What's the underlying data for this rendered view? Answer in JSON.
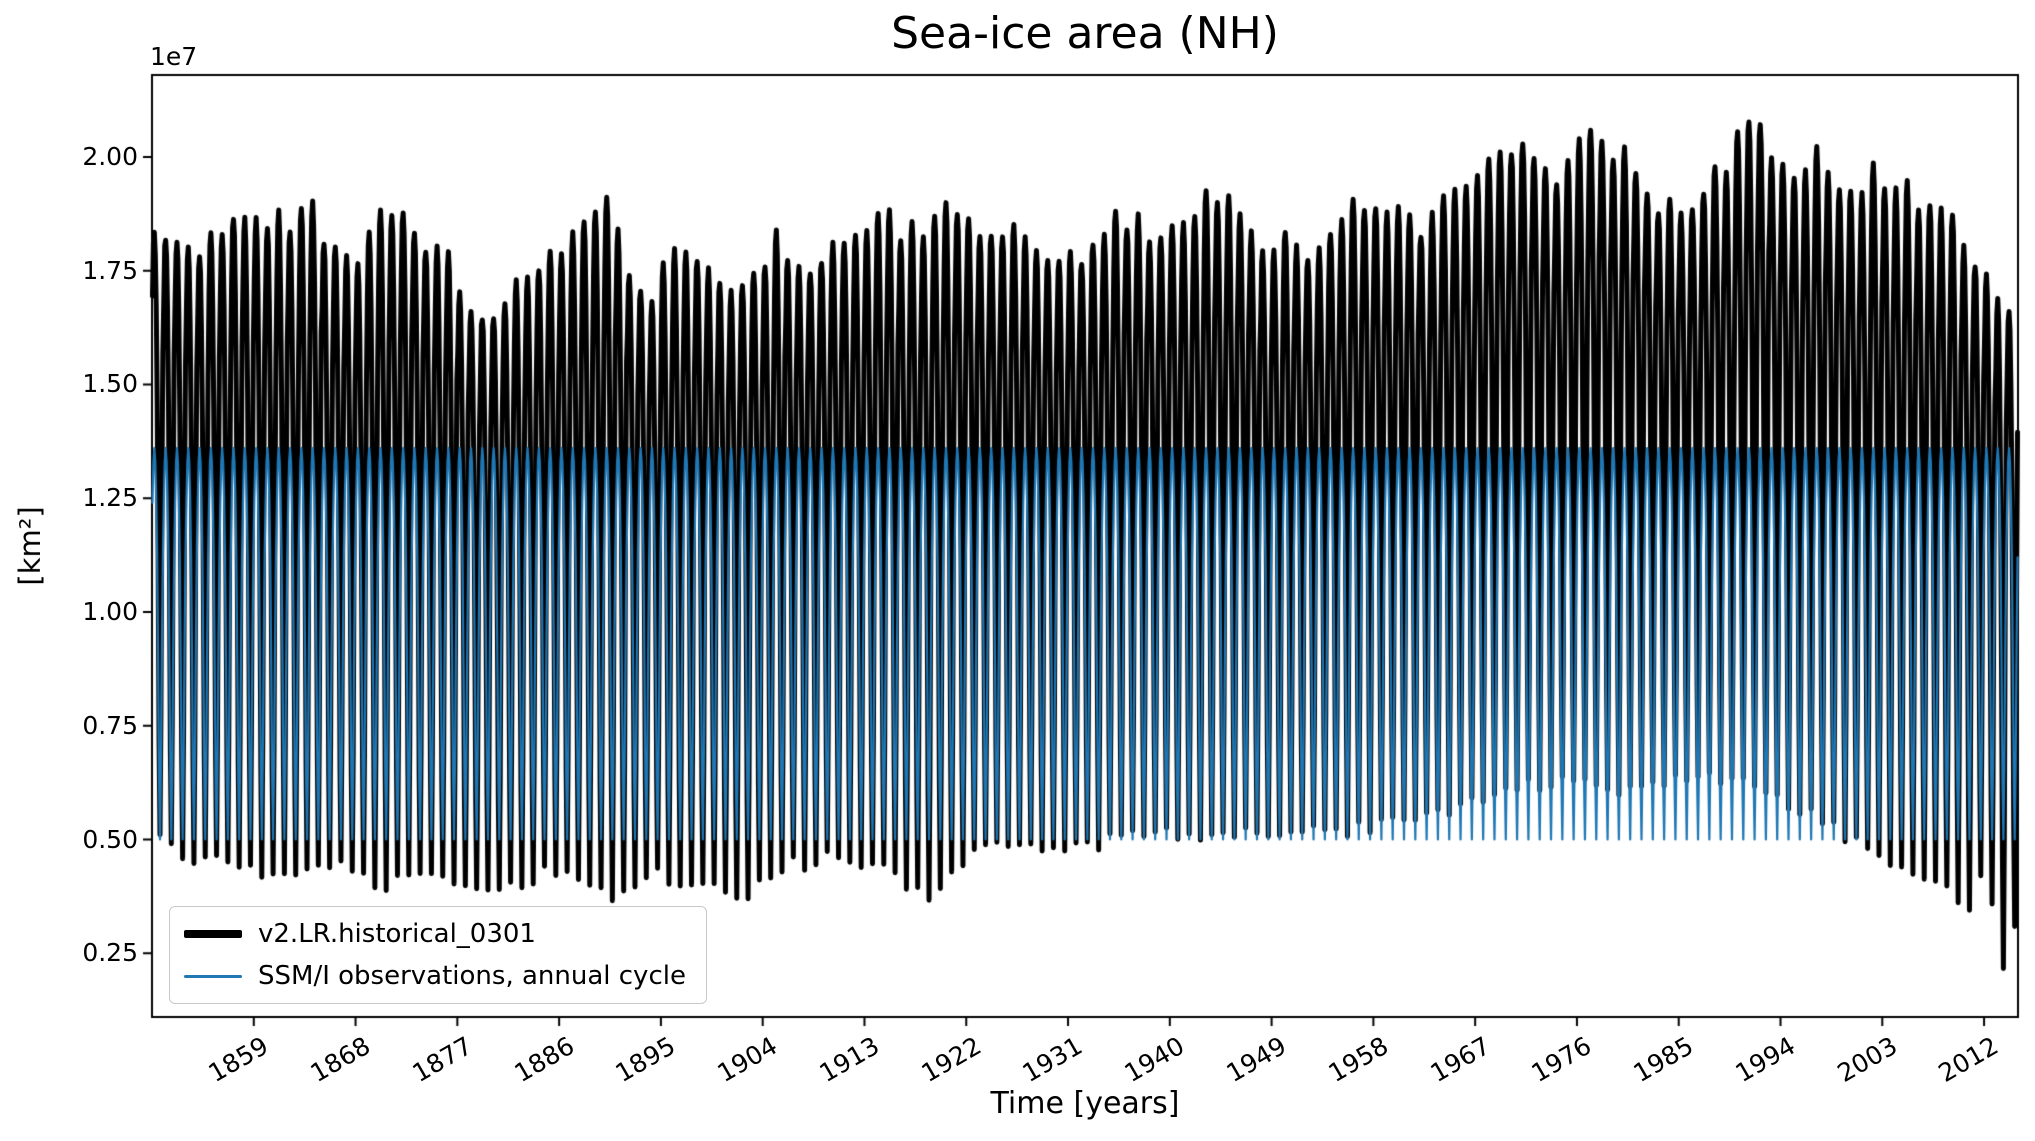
{
  "chart_data": {
    "type": "line",
    "title": "Sea-ice area (NH)",
    "xlabel": "Time [years]",
    "ylabel": "[km²]",
    "y_offset_label": "1e7",
    "x_range": [
      1850,
      2015
    ],
    "y_range_1e7": [
      0.11,
      2.18
    ],
    "x_ticks": [
      1859,
      1868,
      1877,
      1886,
      1895,
      1904,
      1913,
      1922,
      1931,
      1940,
      1949,
      1958,
      1967,
      1976,
      1985,
      1994,
      2003,
      2012
    ],
    "y_ticks_1e7": [
      0.25,
      0.5,
      0.75,
      1.0,
      1.25,
      1.5,
      1.75,
      2.0
    ],
    "grid": false,
    "legend_position": "lower left",
    "series": [
      {
        "name": "v2.LR.historical_0301",
        "color": "#000000",
        "linewidth": 5,
        "kind": "monthly_cycle_with_envelope",
        "monthly_shape": [
          0.9,
          0.98,
          1.0,
          0.97,
          0.88,
          0.72,
          0.46,
          0.16,
          0.0,
          0.2,
          0.56,
          0.8
        ],
        "max_envelope_1e7": [
          [
            1850,
            1.84
          ],
          [
            1853,
            1.77
          ],
          [
            1856,
            1.85
          ],
          [
            1859,
            1.84
          ],
          [
            1862,
            1.86
          ],
          [
            1864,
            1.88
          ],
          [
            1866,
            1.78
          ],
          [
            1868,
            1.76
          ],
          [
            1870,
            1.88
          ],
          [
            1873,
            1.84
          ],
          [
            1876,
            1.76
          ],
          [
            1878,
            1.65
          ],
          [
            1881,
            1.68
          ],
          [
            1884,
            1.78
          ],
          [
            1887,
            1.83
          ],
          [
            1890,
            1.91
          ],
          [
            1892,
            1.74
          ],
          [
            1894,
            1.68
          ],
          [
            1896,
            1.81
          ],
          [
            1899,
            1.75
          ],
          [
            1902,
            1.72
          ],
          [
            1905,
            1.82
          ],
          [
            1908,
            1.77
          ],
          [
            1911,
            1.84
          ],
          [
            1914,
            1.87
          ],
          [
            1917,
            1.83
          ],
          [
            1920,
            1.9
          ],
          [
            1923,
            1.85
          ],
          [
            1926,
            1.83
          ],
          [
            1929,
            1.78
          ],
          [
            1932,
            1.8
          ],
          [
            1935,
            1.87
          ],
          [
            1938,
            1.84
          ],
          [
            1941,
            1.86
          ],
          [
            1944,
            1.92
          ],
          [
            1947,
            1.81
          ],
          [
            1950,
            1.82
          ],
          [
            1953,
            1.79
          ],
          [
            1956,
            1.89
          ],
          [
            1959,
            1.87
          ],
          [
            1962,
            1.86
          ],
          [
            1965,
            1.92
          ],
          [
            1968,
            1.98
          ],
          [
            1971,
            2.02
          ],
          [
            1974,
            1.96
          ],
          [
            1977,
            2.04
          ],
          [
            1980,
            2.01
          ],
          [
            1983,
            1.88
          ],
          [
            1986,
            1.91
          ],
          [
            1989,
            1.99
          ],
          [
            1991,
            2.1
          ],
          [
            1993,
            2.0
          ],
          [
            1995,
            1.97
          ],
          [
            1997,
            2.0
          ],
          [
            2000,
            1.9
          ],
          [
            2002,
            1.96
          ],
          [
            2005,
            1.92
          ],
          [
            2008,
            1.89
          ],
          [
            2010,
            1.81
          ],
          [
            2012,
            1.73
          ],
          [
            2014,
            1.68
          ]
        ],
        "min_envelope_1e7": [
          [
            1850,
            0.5
          ],
          [
            1854,
            0.45
          ],
          [
            1858,
            0.43
          ],
          [
            1862,
            0.42
          ],
          [
            1866,
            0.44
          ],
          [
            1870,
            0.4
          ],
          [
            1874,
            0.43
          ],
          [
            1878,
            0.39
          ],
          [
            1882,
            0.41
          ],
          [
            1886,
            0.43
          ],
          [
            1890,
            0.38
          ],
          [
            1894,
            0.42
          ],
          [
            1898,
            0.4
          ],
          [
            1902,
            0.38
          ],
          [
            1906,
            0.44
          ],
          [
            1910,
            0.47
          ],
          [
            1914,
            0.44
          ],
          [
            1918,
            0.37
          ],
          [
            1922,
            0.47
          ],
          [
            1926,
            0.5
          ],
          [
            1930,
            0.48
          ],
          [
            1934,
            0.5
          ],
          [
            1938,
            0.52
          ],
          [
            1942,
            0.5
          ],
          [
            1946,
            0.52
          ],
          [
            1950,
            0.51
          ],
          [
            1954,
            0.52
          ],
          [
            1958,
            0.54
          ],
          [
            1962,
            0.55
          ],
          [
            1966,
            0.58
          ],
          [
            1970,
            0.61
          ],
          [
            1974,
            0.63
          ],
          [
            1978,
            0.6
          ],
          [
            1982,
            0.62
          ],
          [
            1986,
            0.65
          ],
          [
            1990,
            0.63
          ],
          [
            1994,
            0.58
          ],
          [
            1998,
            0.52
          ],
          [
            2002,
            0.47
          ],
          [
            2006,
            0.42
          ],
          [
            2009,
            0.38
          ],
          [
            2010,
            0.34
          ],
          [
            2011,
            0.42
          ],
          [
            2012,
            0.36
          ],
          [
            2013,
            0.22
          ],
          [
            2014,
            0.3
          ]
        ]
      },
      {
        "name": "SSM/I observations, annual cycle",
        "color": "#1f77b4",
        "linewidth": 2.2,
        "kind": "repeating_annual_cycle",
        "monthly_values_1e7": [
          1.24,
          1.33,
          1.36,
          1.33,
          1.25,
          1.12,
          0.89,
          0.63,
          0.5,
          0.66,
          0.92,
          1.12
        ]
      }
    ]
  }
}
